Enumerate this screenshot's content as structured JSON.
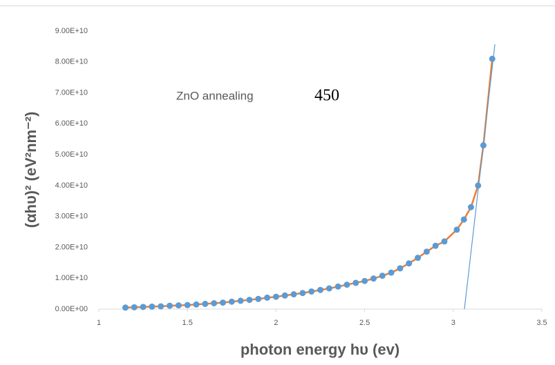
{
  "chart_data": {
    "type": "scatter",
    "x_label": "photon energy hυ (ev)",
    "y_label": "(αhυ)² (eV²nm⁻²)",
    "annotations": [
      "ZnO annealing",
      "450"
    ],
    "xlim": [
      1,
      3.5
    ],
    "xticks": [
      1,
      1.5,
      2,
      2.5,
      3,
      3.5
    ],
    "ylim": [
      0,
      90000000000.0
    ],
    "yticks": [
      {
        "value": 0,
        "label": "0.00E+00"
      },
      {
        "value": 10000000000.0,
        "label": "1.00E+10"
      },
      {
        "value": 20000000000.0,
        "label": "2.00E+10"
      },
      {
        "value": 30000000000.0,
        "label": "3.00E+10"
      },
      {
        "value": 40000000000.0,
        "label": "4.00E+10"
      },
      {
        "value": 50000000000.0,
        "label": "5.00E+10"
      },
      {
        "value": 60000000000.0,
        "label": "6.00E+10"
      },
      {
        "value": 70000000000.0,
        "label": "7.00E+10"
      },
      {
        "value": 80000000000.0,
        "label": "8.00E+10"
      },
      {
        "value": 90000000000.0,
        "label": "9.00E+10"
      }
    ],
    "grid": false,
    "line_color": "#ed7d31",
    "marker_color": "#5b9bd5",
    "x": [
      1.15,
      1.2,
      1.25,
      1.3,
      1.35,
      1.4,
      1.45,
      1.5,
      1.55,
      1.6,
      1.65,
      1.7,
      1.75,
      1.8,
      1.85,
      1.9,
      1.95,
      2.0,
      2.05,
      2.1,
      2.15,
      2.2,
      2.25,
      2.3,
      2.35,
      2.4,
      2.45,
      2.5,
      2.55,
      2.6,
      2.65,
      2.7,
      2.75,
      2.8,
      2.85,
      2.9,
      2.95,
      3.02,
      3.06,
      3.1,
      3.14,
      3.17,
      3.22
    ],
    "values": [
      500000000.0,
      600000000.0,
      700000000.0,
      800000000.0,
      900000000.0,
      1100000000.0,
      1200000000.0,
      1300000000.0,
      1500000000.0,
      1700000000.0,
      1900000000.0,
      2100000000.0,
      2400000000.0,
      2700000000.0,
      3000000000.0,
      3300000000.0,
      3700000000.0,
      4000000000.0,
      4400000000.0,
      4800000000.0,
      5200000000.0,
      5700000000.0,
      6200000000.0,
      6700000000.0,
      7300000000.0,
      7900000000.0,
      8500000000.0,
      9100000000.0,
      9900000000.0,
      10800000000.0,
      11800000000.0,
      13200000000.0,
      14800000000.0,
      16600000000.0,
      18600000000.0,
      20500000000.0,
      21900000000.0,
      25700000000.0,
      29000000000.0,
      33000000000.0,
      40000000000.0,
      53000000000.0,
      81000000000.0
    ],
    "tangent": {
      "x": [
        3.063,
        3.235
      ],
      "values": [
        0,
        85700000000.0
      ],
      "color": "#5b9bd5"
    }
  }
}
